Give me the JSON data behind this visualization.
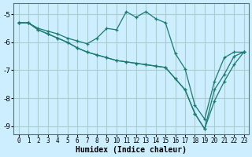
{
  "xlabel": "Humidex (Indice chaleur)",
  "ylabel": "",
  "bg_color": "#cceeff",
  "grid_color": "#aacccc",
  "line_color": "#1a7a6e",
  "xlim": [
    -0.5,
    23.5
  ],
  "ylim": [
    -9.3,
    -4.6
  ],
  "yticks": [
    -9,
    -8,
    -7,
    -6,
    -5
  ],
  "xticks": [
    0,
    1,
    2,
    3,
    4,
    5,
    6,
    7,
    8,
    9,
    10,
    11,
    12,
    13,
    14,
    15,
    16,
    17,
    18,
    19,
    20,
    21,
    22,
    23
  ],
  "lines": [
    {
      "x": [
        0,
        1,
        2,
        3,
        4,
        5,
        6,
        7,
        8,
        9,
        10,
        11,
        12,
        13,
        14,
        15,
        16,
        17,
        18,
        19,
        20,
        21,
        22,
        23
      ],
      "y": [
        -5.3,
        -5.3,
        -5.5,
        -5.6,
        -5.7,
        -5.85,
        -5.95,
        -6.05,
        -5.85,
        -5.5,
        -5.55,
        -4.9,
        -5.1,
        -4.9,
        -5.15,
        -5.3,
        -6.4,
        -6.95,
        -8.25,
        -8.75,
        -7.4,
        -6.55,
        -6.35,
        -6.35
      ]
    },
    {
      "x": [
        0,
        1,
        2,
        3,
        4,
        5,
        6,
        7,
        8,
        9,
        10,
        11,
        12,
        13,
        14,
        15,
        16,
        17,
        18,
        19,
        20,
        21,
        22,
        23
      ],
      "y": [
        -5.3,
        -5.3,
        -5.55,
        -5.7,
        -5.85,
        -6.0,
        -6.2,
        -6.35,
        -6.45,
        -6.55,
        -6.65,
        -6.7,
        -6.75,
        -6.8,
        -6.85,
        -6.9,
        -7.3,
        -7.7,
        -8.55,
        -9.1,
        -8.1,
        -7.4,
        -6.8,
        -6.35
      ]
    },
    {
      "x": [
        0,
        1,
        2,
        3,
        4,
        5,
        6,
        7,
        8,
        9,
        10,
        11,
        12,
        13,
        14,
        15,
        16,
        17,
        18,
        19,
        20,
        21,
        22,
        23
      ],
      "y": [
        -5.3,
        -5.3,
        -5.55,
        -5.7,
        -5.85,
        -6.0,
        -6.2,
        -6.35,
        -6.45,
        -6.55,
        -6.65,
        -6.7,
        -6.75,
        -6.8,
        -6.85,
        -6.9,
        -7.3,
        -7.7,
        -8.55,
        -9.1,
        -7.7,
        -7.15,
        -6.5,
        -6.35
      ]
    }
  ]
}
